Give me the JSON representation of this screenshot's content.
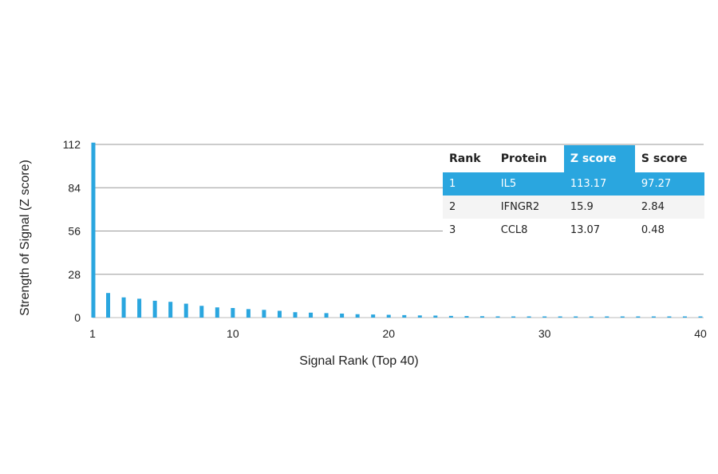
{
  "chart_data": {
    "type": "bar",
    "xlabel": "Signal Rank (Top 40)",
    "ylabel": "Strength of Signal (Z score)",
    "x_ticks": [
      1,
      10,
      20,
      30,
      40
    ],
    "y_ticks": [
      0,
      28,
      56,
      84,
      112
    ],
    "xlim": [
      1,
      40
    ],
    "ylim": [
      0,
      112
    ],
    "grid": true,
    "bar_color": "#2aa6df",
    "x": [
      1,
      2,
      3,
      4,
      5,
      6,
      7,
      8,
      9,
      10,
      11,
      12,
      13,
      14,
      15,
      16,
      17,
      18,
      19,
      20,
      21,
      22,
      23,
      24,
      25,
      26,
      27,
      28,
      29,
      30,
      31,
      32,
      33,
      34,
      35,
      36,
      37,
      38,
      39,
      40
    ],
    "values": [
      113.17,
      15.9,
      13.07,
      12.2,
      10.9,
      10.2,
      9.0,
      7.6,
      6.6,
      6.2,
      5.5,
      5.0,
      4.4,
      3.5,
      3.2,
      2.9,
      2.6,
      2.2,
      2.0,
      1.8,
      1.6,
      1.4,
      1.3,
      1.1,
      1.0,
      0.9,
      0.8,
      0.75,
      0.7,
      0.65,
      0.6,
      0.55,
      0.5,
      0.5,
      0.45,
      0.45,
      0.4,
      0.4,
      0.35,
      0.35
    ]
  },
  "table": {
    "columns": [
      "Rank",
      "Protein",
      "Z score",
      "S score"
    ],
    "rows": [
      [
        "1",
        "IL5",
        "113.17",
        "97.27"
      ],
      [
        "2",
        "IFNGR2",
        "15.9",
        "2.84"
      ],
      [
        "3",
        "CCL8",
        "13.07",
        "0.48"
      ]
    ]
  }
}
